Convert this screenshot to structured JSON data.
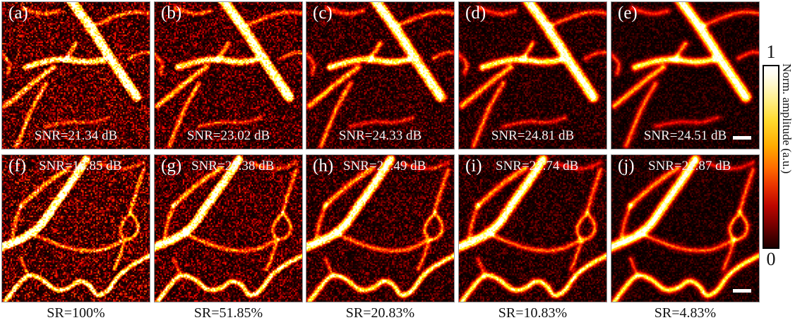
{
  "panels": [
    {
      "label": "(a)",
      "snr": "SNR=21.34 dB",
      "scene": 0,
      "noise": 0.55,
      "blur": 0.7
    },
    {
      "label": "(b)",
      "snr": "SNR=23.02 dB",
      "scene": 0,
      "noise": 0.44,
      "blur": 1.3
    },
    {
      "label": "(c)",
      "snr": "SNR=24.33 dB",
      "scene": 0,
      "noise": 0.32,
      "blur": 2.2
    },
    {
      "label": "(d)",
      "snr": "SNR=24.81 dB",
      "scene": 0,
      "noise": 0.24,
      "blur": 2.9
    },
    {
      "label": "(e)",
      "snr": "SNR=24.51 dB",
      "scene": 0,
      "noise": 0.17,
      "blur": 3.5
    },
    {
      "label": "(f)",
      "snr": "SNR=18.85 dB",
      "scene": 1,
      "noise": 0.58,
      "blur": 0.7
    },
    {
      "label": "(g)",
      "snr": "SNR=20.38 dB",
      "scene": 1,
      "noise": 0.46,
      "blur": 1.3
    },
    {
      "label": "(h)",
      "snr": "SNR=21.49 dB",
      "scene": 1,
      "noise": 0.34,
      "blur": 2.2
    },
    {
      "label": "(i)",
      "snr": "SNR=21.74 dB",
      "scene": 1,
      "noise": 0.26,
      "blur": 2.9
    },
    {
      "label": "(j)",
      "snr": "SNR=21.87 dB",
      "scene": 1,
      "noise": 0.18,
      "blur": 3.5
    }
  ],
  "sr_labels": [
    "SR=100%",
    "SR=51.85%",
    "SR=20.83%",
    "SR=10.83%",
    "SR=4.83%"
  ],
  "colorbar": {
    "max": "1",
    "min": "0",
    "label": "Norm. amplitude (a.u.)"
  },
  "colors": {
    "background": "#000000",
    "panel_border": "#8f8f8f",
    "text_in_panel": "#ffffff",
    "text_outside": "#111111"
  },
  "scenes": [
    [
      {
        "p": [
          [
            0.46,
            -0.02
          ],
          [
            0.55,
            0.1
          ],
          [
            0.66,
            0.26
          ],
          [
            0.76,
            0.42
          ],
          [
            0.85,
            0.55
          ],
          [
            0.91,
            0.64
          ]
        ],
        "w": 0.065,
        "i": 1.0
      },
      {
        "p": [
          [
            0.62,
            0.16
          ],
          [
            0.75,
            0.1
          ],
          [
            0.9,
            0.06
          ],
          [
            1.02,
            0.08
          ]
        ],
        "w": 0.03,
        "i": 0.38
      },
      {
        "p": [
          [
            0.14,
            0.04
          ],
          [
            0.26,
            0.09
          ],
          [
            0.38,
            0.06
          ]
        ],
        "w": 0.03,
        "i": 0.35
      },
      {
        "p": [
          [
            0.16,
            0.44
          ],
          [
            0.28,
            0.4
          ],
          [
            0.42,
            0.38
          ],
          [
            0.56,
            0.41
          ],
          [
            0.69,
            0.39
          ]
        ],
        "w": 0.042,
        "i": 0.75
      },
      {
        "p": [
          [
            0.02,
            0.7
          ],
          [
            0.12,
            0.62
          ],
          [
            0.24,
            0.52
          ],
          [
            0.35,
            0.44
          ]
        ],
        "w": 0.036,
        "i": 0.55
      },
      {
        "p": [
          [
            0.3,
            0.55
          ],
          [
            0.22,
            0.68
          ],
          [
            0.16,
            0.82
          ],
          [
            0.1,
            0.97
          ]
        ],
        "w": 0.03,
        "i": 0.45
      },
      {
        "p": [
          [
            0.3,
            0.84
          ],
          [
            0.45,
            0.8
          ],
          [
            0.6,
            0.82
          ],
          [
            0.72,
            0.78
          ]
        ],
        "w": 0.025,
        "i": 0.3
      },
      {
        "p": [
          [
            0.86,
            0.38
          ],
          [
            0.95,
            0.33
          ],
          [
            1.02,
            0.35
          ]
        ],
        "w": 0.026,
        "i": 0.35
      },
      {
        "p": [
          [
            -0.02,
            0.34
          ],
          [
            0.06,
            0.4
          ],
          [
            0.04,
            0.48
          ]
        ],
        "w": 0.03,
        "i": 0.35
      },
      {
        "p": [
          [
            0.5,
            0.28
          ],
          [
            0.46,
            0.34
          ],
          [
            0.43,
            0.39
          ]
        ],
        "w": 0.03,
        "i": 0.5
      }
    ],
    [
      {
        "p": [
          [
            0.57,
            0.03
          ],
          [
            0.5,
            0.14
          ],
          [
            0.42,
            0.25
          ],
          [
            0.34,
            0.36
          ],
          [
            0.27,
            0.47
          ],
          [
            0.17,
            0.55
          ],
          [
            0.05,
            0.6
          ],
          [
            -0.02,
            0.63
          ]
        ],
        "w": 0.055,
        "i": 1.0
      },
      {
        "p": [
          [
            0.13,
            0.34
          ],
          [
            0.24,
            0.24
          ],
          [
            0.34,
            0.16
          ],
          [
            0.45,
            0.09
          ]
        ],
        "w": 0.035,
        "i": 0.5
      },
      {
        "p": [
          [
            0.13,
            0.34
          ],
          [
            0.09,
            0.44
          ],
          [
            0.07,
            0.55
          ]
        ],
        "w": 0.028,
        "i": 0.4
      },
      {
        "p": [
          [
            0.2,
            0.53
          ],
          [
            0.38,
            0.61
          ],
          [
            0.55,
            0.65
          ],
          [
            0.7,
            0.64
          ],
          [
            0.81,
            0.58
          ]
        ],
        "w": 0.027,
        "i": 0.42
      },
      {
        "p": [
          [
            0.96,
            0.1
          ],
          [
            0.91,
            0.24
          ],
          [
            0.87,
            0.38
          ]
        ],
        "w": 0.027,
        "i": 0.42
      },
      {
        "p": [
          [
            0.87,
            0.39
          ],
          [
            0.93,
            0.46
          ],
          [
            0.91,
            0.55
          ],
          [
            0.83,
            0.58
          ],
          [
            0.79,
            0.5
          ],
          [
            0.84,
            0.42
          ],
          [
            0.87,
            0.4
          ]
        ],
        "w": 0.024,
        "i": 0.5
      },
      {
        "p": [
          [
            0.83,
            0.58
          ],
          [
            0.8,
            0.68
          ],
          [
            0.76,
            0.77
          ]
        ],
        "w": 0.024,
        "i": 0.42
      },
      {
        "p": [
          [
            0.02,
            0.99
          ],
          [
            0.1,
            0.88
          ],
          [
            0.18,
            0.8
          ],
          [
            0.28,
            0.84
          ],
          [
            0.36,
            0.92
          ],
          [
            0.46,
            0.9
          ],
          [
            0.52,
            0.84
          ],
          [
            0.6,
            0.88
          ],
          [
            0.64,
            0.96
          ],
          [
            0.72,
            0.92
          ],
          [
            0.78,
            0.82
          ],
          [
            0.88,
            0.74
          ],
          [
            1.02,
            0.67
          ]
        ],
        "w": 0.032,
        "i": 0.75
      },
      {
        "p": [
          [
            0.66,
            0.06
          ],
          [
            0.82,
            0.11
          ],
          [
            0.96,
            0.05
          ]
        ],
        "w": 0.025,
        "i": 0.3
      },
      {
        "p": [
          [
            0.17,
            0.8
          ],
          [
            0.13,
            0.7
          ]
        ],
        "w": 0.022,
        "i": 0.35
      }
    ]
  ]
}
